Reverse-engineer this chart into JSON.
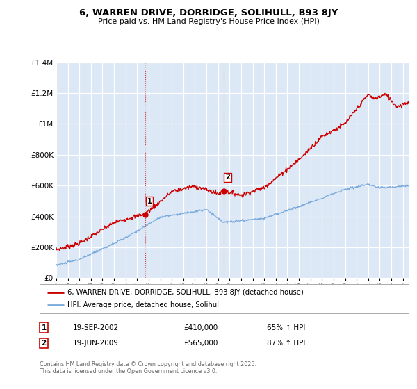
{
  "title": "6, WARREN DRIVE, DORRIDGE, SOLIHULL, B93 8JY",
  "subtitle": "Price paid vs. HM Land Registry's House Price Index (HPI)",
  "legend_line1": "6, WARREN DRIVE, DORRIDGE, SOLIHULL, B93 8JY (detached house)",
  "legend_line2": "HPI: Average price, detached house, Solihull",
  "footnote": "Contains HM Land Registry data © Crown copyright and database right 2025.\nThis data is licensed under the Open Government Licence v3.0.",
  "annotation1_label": "1",
  "annotation1_date": "19-SEP-2002",
  "annotation1_price": "£410,000",
  "annotation1_hpi": "65% ↑ HPI",
  "annotation2_label": "2",
  "annotation2_date": "19-JUN-2009",
  "annotation2_price": "£565,000",
  "annotation2_hpi": "87% ↑ HPI",
  "sale1_x": 2002.72,
  "sale1_y": 410000,
  "sale2_x": 2009.47,
  "sale2_y": 565000,
  "vline1_x": 2002.72,
  "vline2_x": 2009.47,
  "property_color": "#cc0000",
  "hpi_color": "#7aaadc",
  "background_color": "#ffffff",
  "plot_bg_color": "#dce8f5",
  "ylim": [
    0,
    1400000
  ],
  "xlim_start": 1995,
  "xlim_end": 2025.5,
  "yticks": [
    0,
    200000,
    400000,
    600000,
    800000,
    1000000,
    1200000,
    1400000
  ]
}
